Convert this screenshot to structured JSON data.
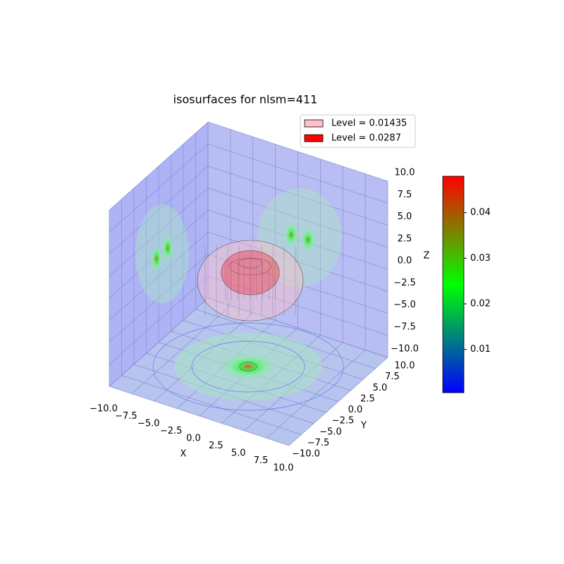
{
  "chart_data": {
    "type": "isosurface3d",
    "title": "isosurfaces for nlsm=411",
    "xlabel": "X",
    "ylabel": "Y",
    "zlabel": "Z",
    "xlim": [
      -10,
      10
    ],
    "ylim": [
      -10,
      10
    ],
    "zlim": [
      -10,
      10
    ],
    "xticks": [
      {
        "value": -10,
        "label": "−10.0"
      },
      {
        "value": -7.5,
        "label": "−7.5"
      },
      {
        "value": -5,
        "label": "−5.0"
      },
      {
        "value": -2.5,
        "label": "−2.5"
      },
      {
        "value": 0,
        "label": "0.0"
      },
      {
        "value": 2.5,
        "label": "2.5"
      },
      {
        "value": 5,
        "label": "5.0"
      },
      {
        "value": 7.5,
        "label": "7.5"
      },
      {
        "value": 10,
        "label": "10.0"
      }
    ],
    "yticks": [
      {
        "value": -10,
        "label": "−10.0"
      },
      {
        "value": -7.5,
        "label": "−7.5"
      },
      {
        "value": -5,
        "label": "−5.0"
      },
      {
        "value": -2.5,
        "label": "−2.5"
      },
      {
        "value": 0,
        "label": "0.0"
      },
      {
        "value": 2.5,
        "label": "2.5"
      },
      {
        "value": 5,
        "label": "5.0"
      },
      {
        "value": 7.5,
        "label": "7.5"
      },
      {
        "value": 10,
        "label": "10.0"
      }
    ],
    "zticks": [
      {
        "value": -10,
        "label": "−10.0"
      },
      {
        "value": -7.5,
        "label": "−7.5"
      },
      {
        "value": -5,
        "label": "−5.0"
      },
      {
        "value": -2.5,
        "label": "−2.5"
      },
      {
        "value": 0,
        "label": "0.0"
      },
      {
        "value": 2.5,
        "label": "2.5"
      },
      {
        "value": 5,
        "label": "5.0"
      },
      {
        "value": 7.5,
        "label": "7.5"
      },
      {
        "value": 10,
        "label": "10.0"
      }
    ],
    "series": [
      {
        "name": "Level = 0.01435",
        "color": "#ffc0cb",
        "values": [
          0.01435
        ]
      },
      {
        "name": "Level = 0.0287",
        "color": "#ff0000",
        "values": [
          0.0287
        ]
      }
    ],
    "colorbar": {
      "lim": [
        0.0005,
        0.048
      ],
      "ticks": [
        0.01,
        0.02,
        0.03,
        0.04
      ],
      "colors": [
        "#0000ff",
        "#00ff00",
        "#ff0000"
      ]
    }
  }
}
